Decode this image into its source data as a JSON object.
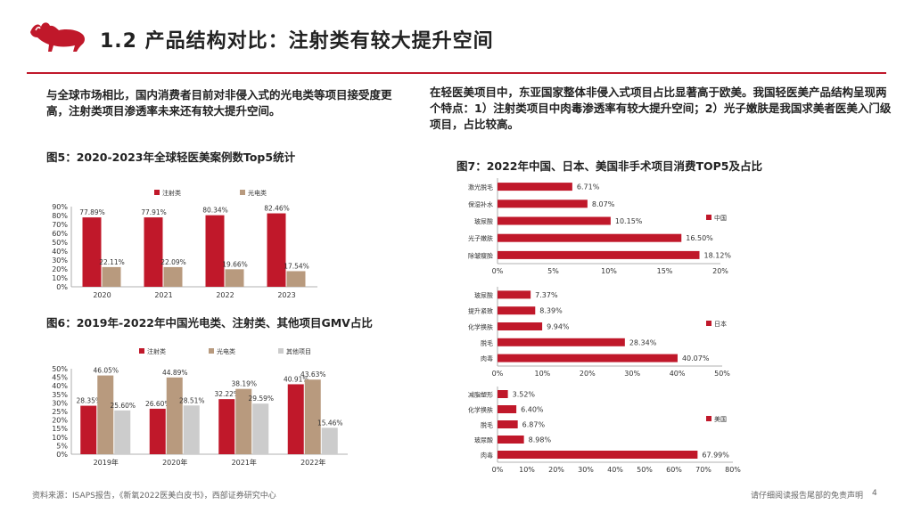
{
  "slide": {
    "title": "1.2 产品结构对比：注射类有较大提升空间",
    "left_text": "与全球市场相比，国内消费者目前对非侵入式的光电类等项目接受度更高，注射类项目渗透率未来还有较大提升空间。",
    "right_text": "在轻医美项目中，东亚国家整体非侵入式项目占比显著高于欧美。我国轻医美产品结构呈现两个特点：1）注射类项目中肉毒渗透率有较大提升空间；2）光子嫩肤是我国求美者医美入门级项目，占比较高。",
    "footer_source": "资料来源：ISAPS报告，《新氧2022医美白皮书》，西部证券研究中心",
    "footer_disclaimer": "请仔细阅读报告尾部的免责声明",
    "page_number": "4"
  },
  "colors": {
    "red": "#c0182a",
    "tan": "#b89a7e",
    "gray": "#cccccc",
    "accent": "#c0182a"
  },
  "chart_data": [
    {
      "id": "fig5",
      "type": "bar",
      "title": "图5：2020-2023年全球轻医美案例数Top5统计",
      "categories": [
        "2020",
        "2021",
        "2022",
        "2023"
      ],
      "series": [
        {
          "name": "注射类",
          "values": [
            77.89,
            77.91,
            80.34,
            82.46
          ],
          "labels": [
            "77.89%",
            "77.91%",
            "80.34%",
            "82.46%"
          ]
        },
        {
          "name": "光电类",
          "values": [
            22.11,
            22.09,
            19.66,
            17.54
          ],
          "labels": [
            "22.11%",
            "22.09%",
            "19.66%",
            "17.54%"
          ]
        }
      ],
      "yticks": [
        "0%",
        "10%",
        "20%",
        "30%",
        "40%",
        "50%",
        "60%",
        "70%",
        "80%",
        "90%"
      ],
      "ylim": [
        0,
        90
      ]
    },
    {
      "id": "fig6",
      "type": "bar",
      "title": "图6：2019年-2022年中国光电类、注射类、其他项目GMV占比",
      "categories": [
        "2019年",
        "2020年",
        "2021年",
        "2022年"
      ],
      "series": [
        {
          "name": "注射类",
          "values": [
            28.35,
            26.6,
            32.22,
            40.91
          ],
          "labels": [
            "28.35%",
            "26.60%",
            "32.22%",
            "40.91%"
          ]
        },
        {
          "name": "光电类",
          "values": [
            46.05,
            44.89,
            38.19,
            43.63
          ],
          "labels": [
            "46.05%",
            "44.89%",
            "38.19%",
            "43.63%"
          ]
        },
        {
          "name": "其他项目",
          "values": [
            25.6,
            28.51,
            29.59,
            15.46
          ],
          "labels": [
            "25.60%",
            "28.51%",
            "29.59%",
            "15.46%"
          ]
        }
      ],
      "yticks": [
        "0%",
        "5%",
        "10%",
        "15%",
        "20%",
        "25%",
        "30%",
        "35%",
        "40%",
        "45%",
        "50%"
      ],
      "ylim": [
        0,
        50
      ]
    },
    {
      "id": "fig7-china",
      "type": "bar",
      "orientation": "horizontal",
      "title": "图7：2022年中国、日本、美国非手术项目消费TOP5及占比",
      "legend": "中国",
      "categories": [
        "激光脱毛",
        "保湿补水",
        "玻尿酸",
        "光子嫩肤",
        "除皱瘦脸"
      ],
      "values": [
        6.71,
        8.07,
        10.15,
        16.5,
        18.12
      ],
      "labels": [
        "6.71%",
        "8.07%",
        "10.15%",
        "16.50%",
        "18.12%"
      ],
      "xticks": [
        "0%",
        "5%",
        "10%",
        "15%",
        "20%"
      ],
      "xlim": [
        0,
        20
      ]
    },
    {
      "id": "fig7-japan",
      "type": "bar",
      "orientation": "horizontal",
      "legend": "日本",
      "categories": [
        "玻尿酸",
        "提升紧致",
        "化学换肤",
        "脱毛",
        "肉毒"
      ],
      "values": [
        7.37,
        8.39,
        9.94,
        28.34,
        40.07
      ],
      "labels": [
        "7.37%",
        "8.39%",
        "9.94%",
        "28.34%",
        "40.07%"
      ],
      "xticks": [
        "0%",
        "10%",
        "20%",
        "30%",
        "40%",
        "50%"
      ],
      "xlim": [
        0,
        50
      ]
    },
    {
      "id": "fig7-usa",
      "type": "bar",
      "orientation": "horizontal",
      "legend": "美国",
      "categories": [
        "减脂塑形",
        "化学换肤",
        "脱毛",
        "玻尿酸",
        "肉毒"
      ],
      "values": [
        3.52,
        6.4,
        6.87,
        8.98,
        67.99
      ],
      "labels": [
        "3.52%",
        "6.40%",
        "6.87%",
        "8.98%",
        "67.99%"
      ],
      "xticks": [
        "0%",
        "10%",
        "20%",
        "30%",
        "40%",
        "50%",
        "60%",
        "70%",
        "80%"
      ],
      "xlim": [
        0,
        80
      ]
    }
  ]
}
